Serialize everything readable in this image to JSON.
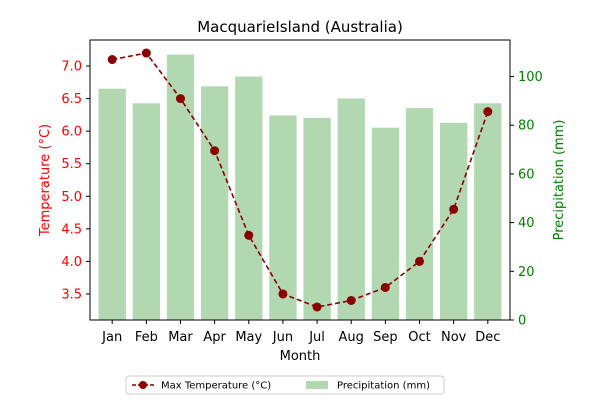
{
  "chart_data": {
    "type": "bar+line",
    "title": "MacquarieIsland (Australia)",
    "xlabel": "Month",
    "ylabel_left": "Temperature (°C)",
    "ylabel_right": "Precipitation (mm)",
    "categories": [
      "Jan",
      "Feb",
      "Mar",
      "Apr",
      "May",
      "Jun",
      "Jul",
      "Aug",
      "Sep",
      "Oct",
      "Nov",
      "Dec"
    ],
    "series": [
      {
        "name": "Max Temperature (°C)",
        "type": "line",
        "axis": "left",
        "color": "#8b0000",
        "line_style": "dashed",
        "values": [
          7.1,
          7.2,
          6.5,
          5.7,
          4.4,
          3.5,
          3.3,
          3.4,
          3.6,
          4.0,
          4.8,
          6.3
        ]
      },
      {
        "name": "Precipitation (mm)",
        "type": "bar",
        "axis": "right",
        "color": "#b2d8b2",
        "values": [
          95,
          89,
          109,
          96,
          100,
          84,
          83,
          91,
          79,
          87,
          81,
          89
        ]
      }
    ],
    "ylim_left": [
      3.1,
      7.4
    ],
    "yticks_left": [
      "3.5",
      "4.0",
      "4.5",
      "5.0",
      "5.5",
      "6.0",
      "6.5",
      "7.0"
    ],
    "ylim_right": [
      0,
      115
    ],
    "yticks_right": [
      "0",
      "20",
      "40",
      "60",
      "80",
      "100"
    ],
    "left_axis_color": "#ff0000",
    "right_axis_color": "#008000",
    "grid": false,
    "legend_position": "bottom-center"
  }
}
